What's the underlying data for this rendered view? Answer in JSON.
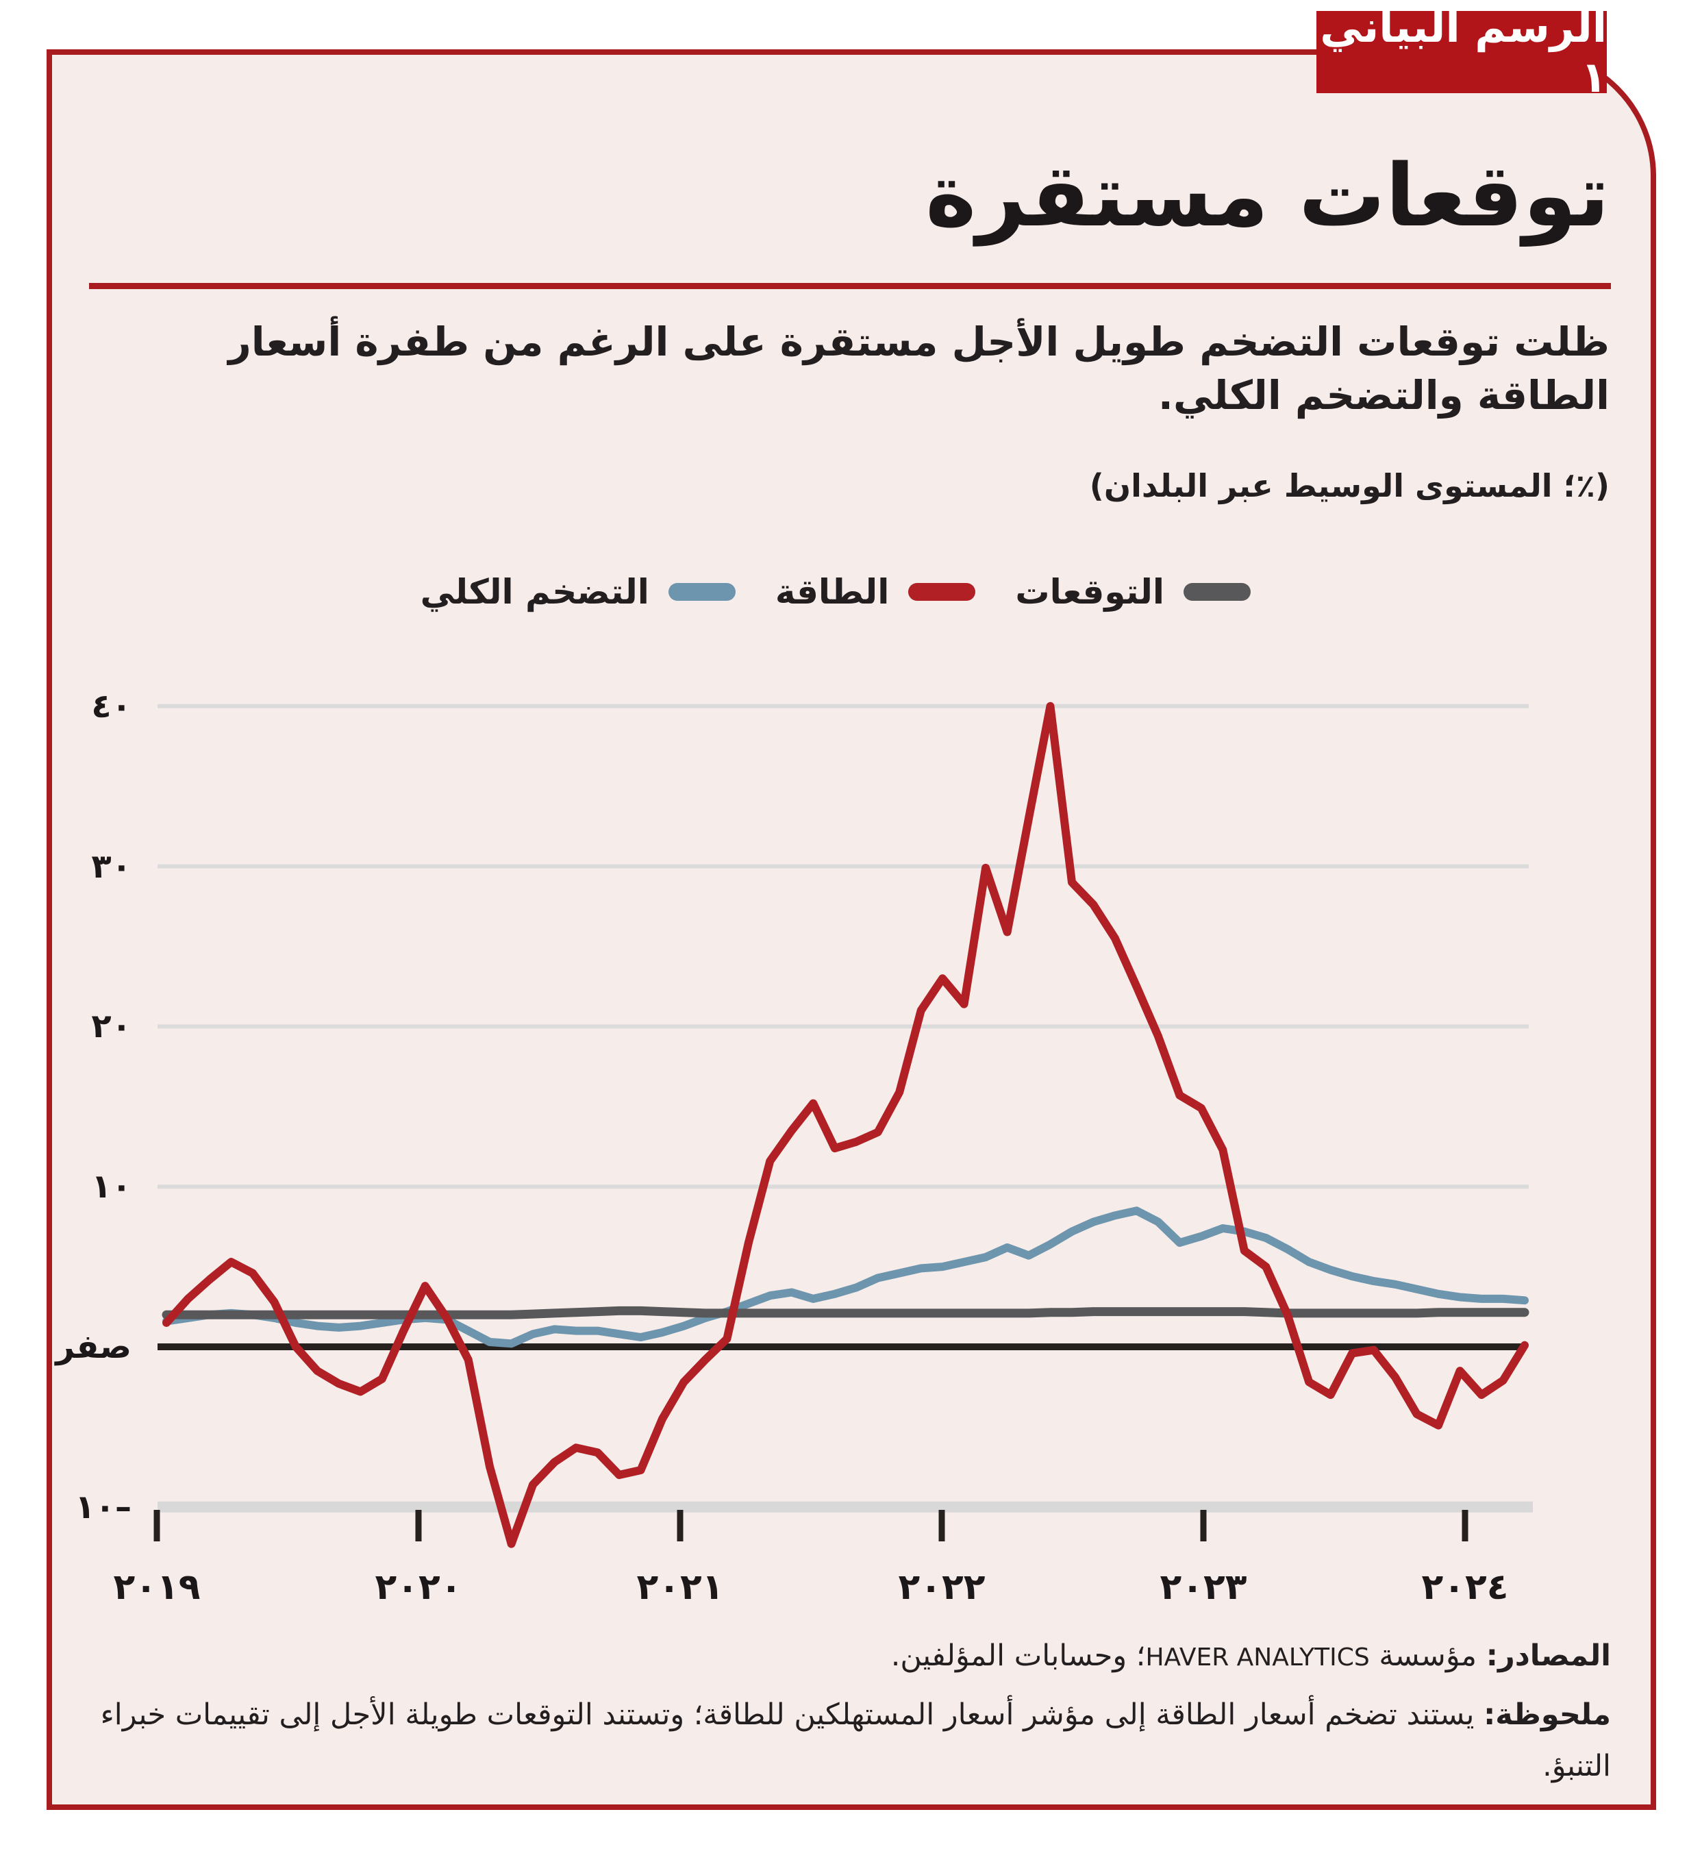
{
  "badge": "الرسم البياني ١",
  "title": "توقعات مستقرة",
  "subtitle_line1": "ظلت توقعات التضخم طويل الأجل مستقرة على الرغم من طفرة أسعار",
  "subtitle_line2": "الطاقة والتضخم الكلي.",
  "unit_note": "(٪؛ المستوى الوسيط عبر البلدان)",
  "colors": {
    "frame_red": "#a81c20",
    "badge_red": "#b1151a",
    "background": "#f6ece9",
    "expectations": "#58585a",
    "energy": "#b02025",
    "headline": "#6d95ae",
    "zero_line": "#26211f",
    "gridline": "#dbdbdb",
    "axis_base": "#d8d8d8",
    "text": "#231e1f"
  },
  "legend": [
    {
      "label": "التوقعات",
      "series": "expectations",
      "color": "#58585a"
    },
    {
      "label": "الطاقة",
      "series": "energy",
      "color": "#b02025"
    },
    {
      "label": "التضخم الكلي",
      "series": "headline",
      "color": "#6d95ae"
    }
  ],
  "chart_data": {
    "type": "line",
    "title": "توقعات مستقرة",
    "ylabel": "٪؛ المستوى الوسيط عبر البلدان",
    "frequency": "monthly",
    "start_month": "2019-01",
    "end_month": "2024-04",
    "grid": "horizontal",
    "legend_position": "top",
    "ylim": [
      -13,
      42
    ],
    "y_ticks": [
      40,
      30,
      20,
      10,
      0,
      -10
    ],
    "y_tick_labels": [
      "٤٠",
      "٣٠",
      "٢٠",
      "١٠",
      "صفر",
      "١٠–"
    ],
    "x_tick_years": [
      2019,
      2020,
      2021,
      2022,
      2023,
      2024
    ],
    "x_tick_labels": [
      "٢٠١٩",
      "٢٠٢٠",
      "٢٠٢١",
      "٢٠٢٢",
      "٢٠٢٣",
      "٢٠٢٤"
    ],
    "series": [
      {
        "name": "التوقعات",
        "key": "expectations",
        "color": "#58585a",
        "values": [
          2.0,
          2.0,
          2.0,
          2.0,
          2.0,
          2.0,
          2.0,
          2.0,
          2.0,
          2.0,
          2.0,
          2.0,
          2.0,
          2.0,
          2.0,
          2.0,
          2.0,
          2.05,
          2.1,
          2.15,
          2.2,
          2.25,
          2.25,
          2.2,
          2.15,
          2.1,
          2.1,
          2.1,
          2.1,
          2.1,
          2.1,
          2.1,
          2.1,
          2.1,
          2.1,
          2.1,
          2.1,
          2.1,
          2.1,
          2.1,
          2.1,
          2.15,
          2.15,
          2.2,
          2.2,
          2.2,
          2.2,
          2.2,
          2.2,
          2.2,
          2.2,
          2.15,
          2.1,
          2.1,
          2.1,
          2.1,
          2.1,
          2.1,
          2.1,
          2.15,
          2.15,
          2.15,
          2.15,
          2.15
        ]
      },
      {
        "name": "الطاقة",
        "key": "energy",
        "color": "#b02025",
        "values": [
          1.5,
          3.0,
          4.2,
          5.3,
          4.6,
          2.8,
          0.0,
          -1.5,
          -2.3,
          -2.8,
          -2.0,
          1.0,
          3.8,
          1.8,
          -0.8,
          -7.5,
          -12.3,
          -8.6,
          -7.2,
          -6.3,
          -6.6,
          -8.0,
          -7.7,
          -4.5,
          -2.2,
          -0.8,
          0.5,
          6.5,
          11.6,
          13.5,
          15.2,
          12.4,
          12.8,
          13.4,
          15.9,
          21.0,
          23.0,
          21.4,
          29.9,
          25.9,
          33.0,
          40.0,
          29.0,
          27.6,
          25.5,
          22.5,
          19.4,
          15.7,
          14.9,
          12.3,
          6.0,
          5.0,
          2.0,
          -2.2,
          -3.0,
          -0.4,
          -0.2,
          -1.9,
          -4.2,
          -4.9,
          -1.5,
          -3.0,
          -2.1,
          0.1
        ]
      },
      {
        "name": "التضخم الكلي",
        "key": "headline",
        "color": "#6d95ae",
        "values": [
          1.6,
          1.8,
          2.0,
          2.1,
          2.0,
          1.8,
          1.5,
          1.3,
          1.2,
          1.3,
          1.5,
          1.7,
          1.8,
          1.7,
          1.0,
          0.3,
          0.2,
          0.8,
          1.1,
          1.0,
          1.0,
          0.8,
          0.6,
          0.9,
          1.3,
          1.8,
          2.2,
          2.7,
          3.2,
          3.4,
          3.0,
          3.3,
          3.7,
          4.3,
          4.6,
          4.9,
          5.0,
          5.3,
          5.6,
          6.2,
          5.7,
          6.4,
          7.2,
          7.8,
          8.2,
          8.5,
          7.8,
          6.5,
          6.9,
          7.4,
          7.2,
          6.8,
          6.1,
          5.3,
          4.8,
          4.4,
          4.1,
          3.9,
          3.6,
          3.3,
          3.1,
          3.0,
          3.0,
          2.9
        ]
      }
    ]
  },
  "source": {
    "label": "المصادر:",
    "pre": " مؤسسة ",
    "latin": "HAVER ANALYTICS",
    "post": "؛ وحسابات المؤلفين."
  },
  "note": {
    "label": "ملحوظة:",
    "text": " يستند تضخم أسعار الطاقة إلى مؤشر أسعار المستهلكين للطاقة؛ وتستند التوقعات طويلة الأجل إلى تقييمات خبراء التنبؤ."
  }
}
